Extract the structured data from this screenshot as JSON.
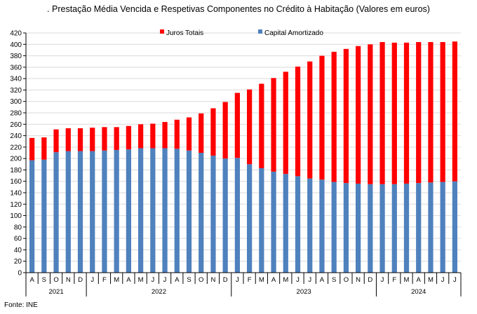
{
  "chart_data": {
    "type": "bar",
    "stacked": true,
    "title": ". Prestação Média Vencida e Respetivas Componentes no Crédito à Habitação (Valores em euros)",
    "source": "Fonte: INE",
    "ylim": [
      0,
      420
    ],
    "ytick_step": 20,
    "legend_position": "top",
    "categories": [
      "A",
      "S",
      "O",
      "N",
      "D",
      "J",
      "F",
      "M",
      "A",
      "M",
      "J",
      "J",
      "A",
      "S",
      "O",
      "N",
      "D",
      "J",
      "F",
      "M",
      "A",
      "M",
      "J",
      "J",
      "A",
      "S",
      "O",
      "N",
      "D",
      "J",
      "F",
      "M",
      "A",
      "M",
      "J",
      "J"
    ],
    "year_groups": [
      {
        "label": "2021",
        "count": 5
      },
      {
        "label": "2022",
        "count": 12
      },
      {
        "label": "2023",
        "count": 12
      },
      {
        "label": "2024",
        "count": 7
      }
    ],
    "series": [
      {
        "name": "Capital Amortizado",
        "color": "#4f81bd",
        "values": [
          197,
          198,
          211,
          213,
          213,
          213,
          214,
          215,
          216,
          218,
          218,
          218,
          217,
          214,
          210,
          205,
          200,
          201,
          190,
          183,
          177,
          173,
          169,
          165,
          163,
          159,
          157,
          156,
          155,
          155,
          155,
          156,
          157,
          158,
          159,
          160
        ]
      },
      {
        "name": "Juros Totais",
        "color": "#ff0000",
        "values": [
          39,
          39,
          40,
          40,
          40,
          41,
          41,
          40,
          41,
          42,
          43,
          46,
          51,
          58,
          69,
          83,
          99,
          114,
          131,
          148,
          164,
          179,
          192,
          205,
          217,
          228,
          235,
          241,
          245,
          249,
          248,
          247,
          247,
          246,
          245,
          245
        ]
      }
    ]
  }
}
